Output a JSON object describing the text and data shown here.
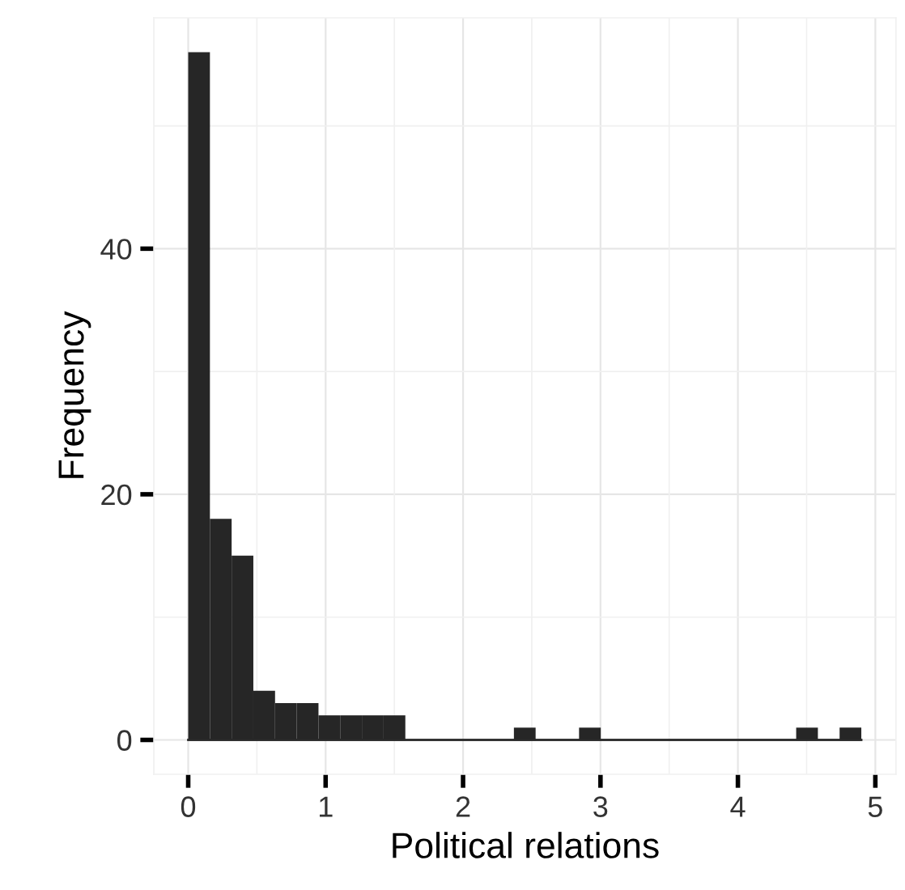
{
  "chart_data": {
    "type": "histogram",
    "xlabel": "Political relations",
    "ylabel": "Frequency",
    "bins": [
      0,
      0.158,
      0.316,
      0.474,
      0.632,
      0.79,
      0.948,
      1.106,
      1.264,
      1.422,
      1.58,
      1.738,
      1.896,
      2.054,
      2.212,
      2.37,
      2.528,
      2.686,
      2.844,
      3.002,
      3.16,
      3.318,
      3.476,
      3.634,
      3.792,
      3.95,
      4.108,
      4.266,
      4.424,
      4.582,
      4.74,
      4.898
    ],
    "values": [
      56,
      18,
      15,
      4,
      3,
      3,
      2,
      2,
      2,
      2,
      0,
      0,
      0,
      0,
      0,
      1,
      0,
      0,
      1,
      0,
      0,
      0,
      0,
      0,
      0,
      0,
      0,
      0,
      1,
      0,
      1
    ],
    "color": "#262626",
    "xlim": [
      -0.25,
      5.15
    ],
    "ylim": [
      -2.8,
      58.8
    ],
    "xticks": [
      0,
      1,
      2,
      3,
      4,
      5
    ],
    "yticks": [
      0,
      20,
      40
    ],
    "grid": true
  }
}
